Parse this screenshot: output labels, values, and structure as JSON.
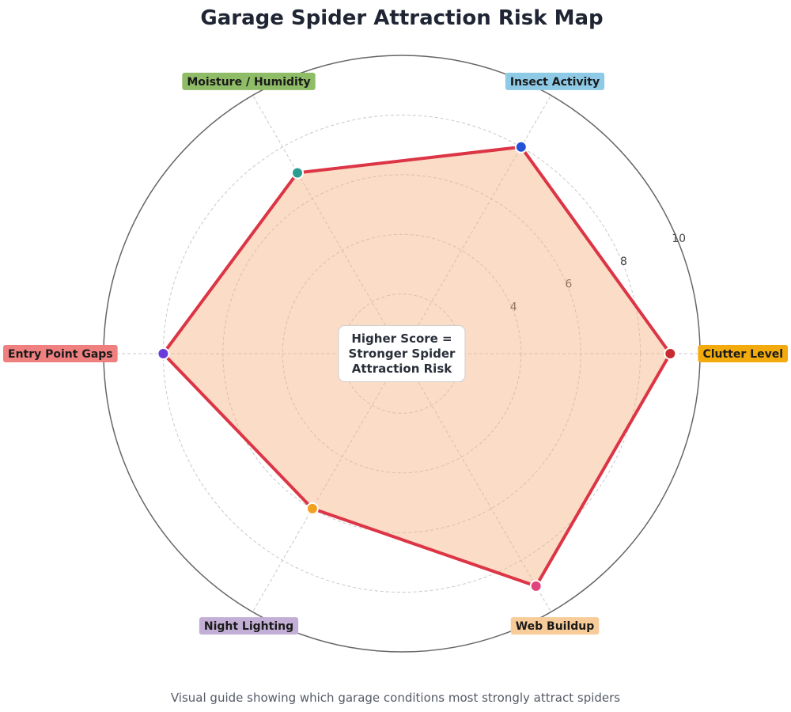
{
  "chart_data": {
    "type": "radar",
    "title": "Garage Spider Attraction Risk Map",
    "caption": "Visual guide showing which garage conditions most strongly attract spiders",
    "center_note": [
      "Higher Score =",
      "Stronger Spider",
      "Attraction Risk"
    ],
    "rmax": 10,
    "ticks": [
      2,
      4,
      6,
      8,
      10
    ],
    "grid": true,
    "categories": [
      {
        "name": "Clutter Level",
        "value": 9,
        "label_color": "#f2aa0c",
        "marker_color": "#c62b2f"
      },
      {
        "name": "Insect Activity",
        "value": 8,
        "label_color": "#8ecae6",
        "marker_color": "#2452d6"
      },
      {
        "name": "Moisture / Humidity",
        "value": 7,
        "label_color": "#8fbc66",
        "marker_color": "#2a9d8f"
      },
      {
        "name": "Entry Point Gaps",
        "value": 8,
        "label_color": "#f08080",
        "marker_color": "#6a3ddb"
      },
      {
        "name": "Night Lighting",
        "value": 6,
        "label_color": "#c3afd6",
        "marker_color": "#f1a020"
      },
      {
        "name": "Web Buildup",
        "value": 9,
        "label_color": "#f7cc9a",
        "marker_color": "#e0447a"
      }
    ],
    "line_color": "#dc3545",
    "fill_color": "#f4b183"
  }
}
